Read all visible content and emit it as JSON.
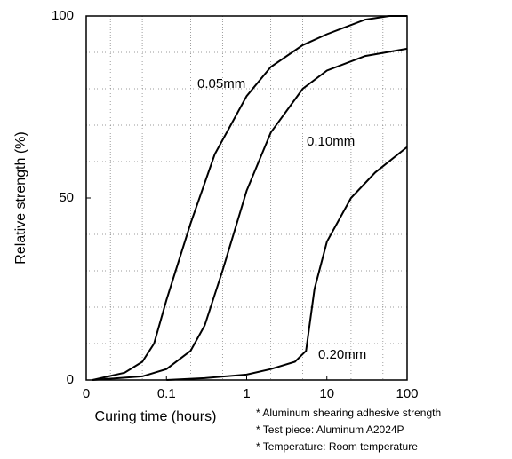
{
  "chart_data": {
    "type": "line",
    "x_label": "Curing time (hours)",
    "y_label": "Relative strength (%)",
    "xscale": "log",
    "xlim": [
      0.01,
      100
    ],
    "xticks": [
      {
        "value": 0.01,
        "label": "0"
      },
      0.1,
      1,
      10,
      100
    ],
    "xgrid": [
      0.02,
      0.05,
      0.2,
      0.5,
      2,
      5,
      20,
      50
    ],
    "ylim": [
      0,
      100
    ],
    "yticks": [
      0,
      50,
      100
    ],
    "ygrid": [
      10,
      20,
      30,
      40,
      60,
      70,
      80,
      90
    ],
    "grid": true,
    "series": [
      {
        "name": "0.05mm",
        "color": "#000000",
        "x": [
          0.012,
          0.03,
          0.05,
          0.07,
          0.1,
          0.2,
          0.4,
          1,
          2,
          5,
          10,
          30,
          60,
          100
        ],
        "values": [
          0,
          2,
          5,
          10,
          22,
          43,
          62,
          78,
          86,
          92,
          95,
          99,
          100,
          100
        ]
      },
      {
        "name": "0.10mm",
        "color": "#000000",
        "x": [
          0.012,
          0.05,
          0.1,
          0.2,
          0.3,
          0.5,
          1,
          2,
          5,
          10,
          30,
          100
        ],
        "values": [
          0,
          1,
          3,
          8,
          15,
          30,
          52,
          68,
          80,
          85,
          89,
          91
        ]
      },
      {
        "name": "0.20mm",
        "color": "#000000",
        "x": [
          0.1,
          0.3,
          1,
          2,
          4,
          5.5,
          7,
          10,
          20,
          40,
          100
        ],
        "values": [
          0,
          0.5,
          1.5,
          3,
          5,
          8,
          25,
          38,
          50,
          57,
          64
        ]
      }
    ],
    "notes": [
      "* Aluminum shearing adhesive strength",
      "* Test piece: Aluminum A2024P",
      "* Temperature: Room temperature"
    ]
  }
}
